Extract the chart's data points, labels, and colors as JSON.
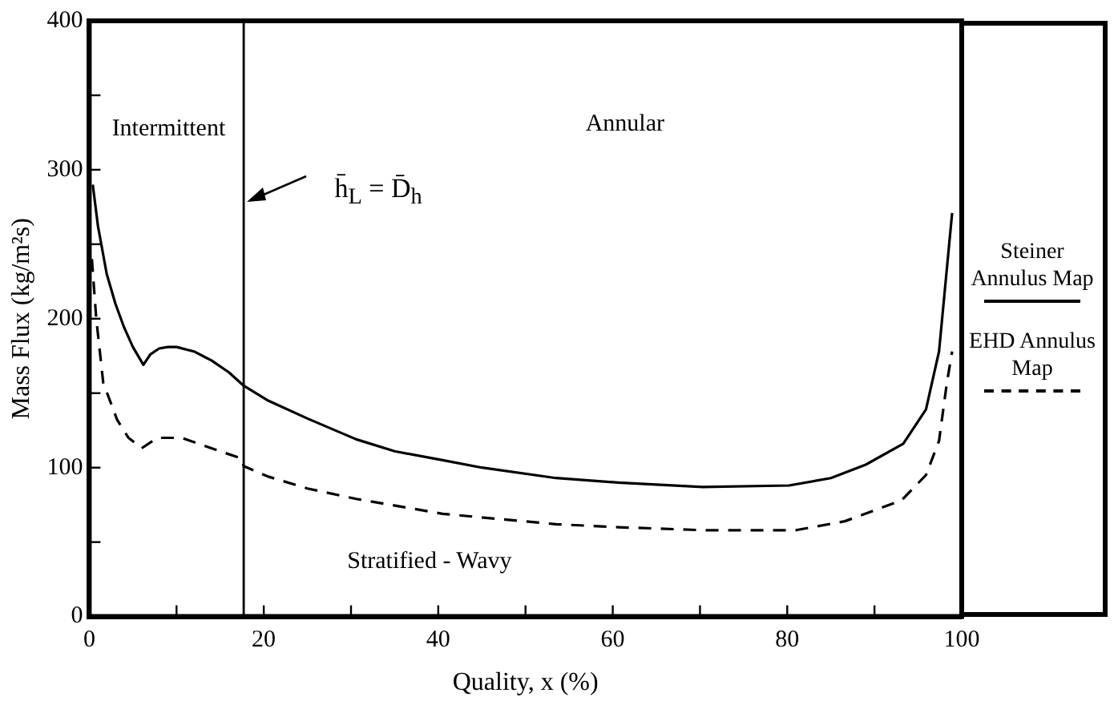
{
  "chart_data": {
    "type": "line",
    "xlabel": "Quality, x (%)",
    "ylabel": "Mass Flux (kg/m²s)",
    "xlim": [
      0,
      100
    ],
    "ylim": [
      0,
      400
    ],
    "xticks": [
      0,
      {
        "value": 10,
        "label": null
      },
      20,
      {
        "value": 30,
        "label": null
      },
      40,
      {
        "value": 50,
        "label": null
      },
      60,
      {
        "value": 70,
        "label": null
      },
      80,
      {
        "value": 90,
        "label": null
      },
      100
    ],
    "yticks": [
      0,
      {
        "value": 50,
        "label": null
      },
      100,
      {
        "value": 150,
        "label": null
      },
      200,
      {
        "value": 250,
        "label": null
      },
      300,
      {
        "value": 350,
        "label": null
      },
      400
    ],
    "grid": false,
    "legend": "right",
    "marker": "none",
    "series": [
      {
        "name": "Steiner Annulus Map",
        "color": "#000000",
        "line_style": "solid",
        "x": [
          0.4,
          1,
          2,
          3,
          4,
          5,
          6.2,
          7,
          8,
          9,
          10,
          12,
          14,
          16,
          17.7,
          20.5,
          25,
          30.6,
          35,
          40.5,
          45,
          53.5,
          60.6,
          70.3,
          80.2,
          85,
          89,
          93.3,
          95.9,
          97.4,
          98.9
        ],
        "values": [
          290,
          262,
          230,
          210,
          194,
          181,
          169,
          176,
          180,
          181,
          181,
          178,
          172,
          164,
          155,
          145,
          133,
          119,
          111,
          105,
          100,
          93,
          90,
          87,
          88,
          93,
          102,
          116,
          139,
          178,
          271
        ]
      },
      {
        "name": "EHD Annulus Map",
        "color": "#000000",
        "line_style": "dashed",
        "x": [
          0.3,
          0.8,
          1.6,
          3.2,
          4.5,
          6,
          7.8,
          10.6,
          15,
          17.5,
          17.7,
          20.5,
          25,
          30.6,
          40.5,
          53.5,
          60.6,
          70.3,
          81,
          86.6,
          93.1,
          95.9,
          97.4,
          98.3,
          98.9
        ],
        "values": [
          240,
          200,
          157,
          132,
          120,
          113,
          120,
          120,
          111,
          106,
          101,
          94,
          86,
          79,
          69,
          62,
          60,
          58,
          58,
          64,
          78,
          95,
          118,
          157,
          178
        ]
      }
    ],
    "ref_lines": [
      {
        "axis": "x",
        "value": 17.7,
        "label": "h̄$_{L}$ = D̄$_{h}$",
        "color": "#000000",
        "line_style": "solid"
      }
    ],
    "annotations": [
      "Intermittent",
      "Annular",
      "Stratified - Wavy"
    ]
  }
}
